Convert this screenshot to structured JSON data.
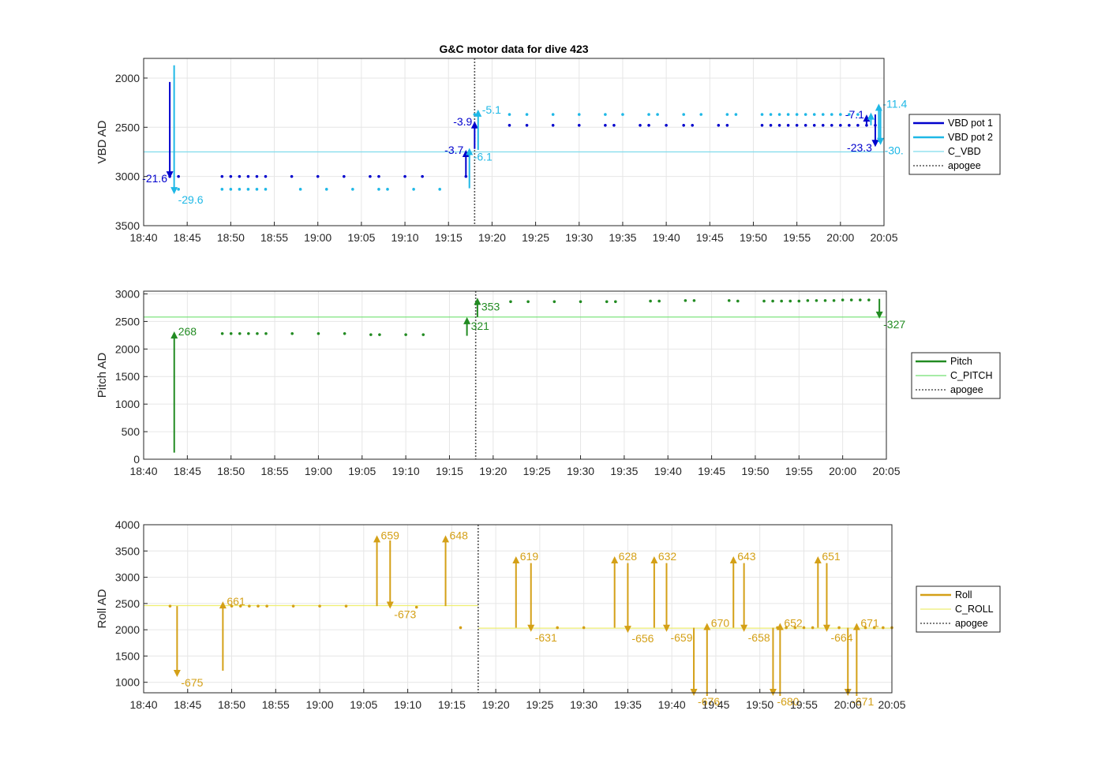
{
  "chart_data": {
    "title": "G&C motor data for dive 423",
    "type": "scatter",
    "xlim": [
      "18:40",
      "20:05"
    ],
    "xticks": [
      "18:40",
      "18:45",
      "18:50",
      "18:55",
      "19:00",
      "19:05",
      "19:10",
      "19:15",
      "19:20",
      "19:25",
      "19:30",
      "19:35",
      "19:40",
      "19:45",
      "19:50",
      "19:55",
      "20:00",
      "20:05"
    ],
    "apogee_time": "19:18",
    "panels": [
      {
        "id": "vbd",
        "ylabel": "VBD AD",
        "ylim": [
          1800,
          3500
        ],
        "reverse_y": true,
        "yticks": [
          2000,
          2500,
          3000,
          3500
        ],
        "grid": true,
        "legend_placement": "right",
        "series": [
          {
            "name": "VBD pot 1",
            "color": "#0000cd",
            "style": "dots",
            "x": [
              "18:43",
              "18:44",
              "18:49",
              "18:50",
              "18:51",
              "18:52",
              "18:53",
              "18:54",
              "18:57",
              "19:00",
              "19:03",
              "19:06",
              "19:07",
              "19:10",
              "19:12",
              "19:17",
              "19:22",
              "19:24",
              "19:27",
              "19:30",
              "19:33",
              "19:34",
              "19:37",
              "19:38",
              "19:40",
              "19:42",
              "19:43",
              "19:46",
              "19:47",
              "19:51",
              "19:52",
              "19:53",
              "19:54",
              "19:55",
              "19:56",
              "19:57",
              "19:58",
              "19:59",
              "20:00",
              "20:01",
              "20:02",
              "20:03",
              "20:04"
            ],
            "y": [
              3000,
              3000,
              3000,
              3000,
              3000,
              3000,
              3000,
              3000,
              3000,
              3000,
              3000,
              3000,
              3000,
              3000,
              3000,
              3000,
              2480,
              2480,
              2480,
              2480,
              2480,
              2480,
              2480,
              2480,
              2480,
              2480,
              2480,
              2480,
              2480,
              2480,
              2480,
              2480,
              2480,
              2480,
              2480,
              2480,
              2480,
              2480,
              2480,
              2480,
              2480,
              2480,
              2480
            ]
          },
          {
            "name": "VBD pot 2",
            "color": "#1fb8e6",
            "style": "dots",
            "x": [
              "18:44",
              "18:49",
              "18:50",
              "18:51",
              "18:52",
              "18:53",
              "18:54",
              "18:58",
              "19:01",
              "19:04",
              "19:07",
              "19:08",
              "19:11",
              "19:14",
              "19:18",
              "19:22",
              "19:24",
              "19:27",
              "19:30",
              "19:33",
              "19:35",
              "19:38",
              "19:39",
              "19:42",
              "19:44",
              "19:47",
              "19:48",
              "19:51",
              "19:52",
              "19:53",
              "19:54",
              "19:55",
              "19:56",
              "19:57",
              "19:58",
              "19:59",
              "20:00",
              "20:01",
              "20:02"
            ],
            "y": [
              3130,
              3130,
              3130,
              3130,
              3130,
              3130,
              3130,
              3130,
              3130,
              3130,
              3130,
              3130,
              3130,
              3130,
              2370,
              2370,
              2370,
              2370,
              2370,
              2370,
              2370,
              2370,
              2370,
              2370,
              2370,
              2370,
              2370,
              2370,
              2370,
              2370,
              2370,
              2370,
              2370,
              2370,
              2370,
              2370,
              2370,
              2370,
              2370
            ]
          },
          {
            "name": "C_VBD",
            "color": "#7fdcec",
            "style": "hline",
            "value": 2750
          },
          {
            "name": "apogee",
            "color": "#555555",
            "style": "vline-dotted"
          }
        ],
        "arrows": [
          {
            "x": "18:43",
            "from": 2040,
            "to": 3020,
            "color": "#0000cd",
            "label": "-21.6",
            "label_side": "left"
          },
          {
            "x": "18:43.5",
            "from": 1870,
            "to": 3180,
            "color": "#1fb8e6",
            "label": "-29.6",
            "label_side": "right-below"
          },
          {
            "x": "19:17",
            "from": 3010,
            "to": 2730,
            "color": "#0000cd",
            "label": "-3.7",
            "label_side": "left"
          },
          {
            "x": "19:17.4",
            "from": 3120,
            "to": 2710,
            "color": "#1fb8e6",
            "label": "-6.1",
            "label_side": "right-below"
          },
          {
            "x": "19:18.0",
            "from": 2720,
            "to": 2440,
            "color": "#0000cd",
            "label": "-3.9",
            "label_side": "left"
          },
          {
            "x": "19:18.4",
            "from": 2730,
            "to": 2320,
            "color": "#1fb8e6",
            "label": "-5.1",
            "label_side": "right"
          },
          {
            "x": "20:03",
            "from": 2490,
            "to": 2370,
            "color": "#0000cd",
            "label": "-7.1",
            "label_side": "left"
          },
          {
            "x": "20:03.5",
            "from": 2480,
            "to": 2350,
            "color": "#1fb8e6",
            "label": "",
            "label_side": "none"
          },
          {
            "x": "20:04",
            "from": 2370,
            "to": 2700,
            "color": "#0000cd",
            "label": "-23.3",
            "label_side": "left-below"
          },
          {
            "x": "20:04.4",
            "from": 2650,
            "to": 2260,
            "color": "#1fb8e6",
            "label": "-11.4",
            "label_side": "right"
          },
          {
            "x": "20:04.6",
            "from": 2300,
            "to": 2680,
            "color": "#1fb8e6",
            "label": "-30.",
            "label_side": "right-below"
          }
        ]
      },
      {
        "id": "pitch",
        "ylabel": "Pitch AD",
        "ylim": [
          0,
          3050
        ],
        "reverse_y": false,
        "yticks": [
          0,
          500,
          1000,
          1500,
          2000,
          2500,
          3000
        ],
        "grid": true,
        "legend_placement": "right",
        "series": [
          {
            "name": "Pitch",
            "color": "#228b22",
            "style": "dots",
            "x": [
              "18:49",
              "18:50",
              "18:51",
              "18:52",
              "18:53",
              "18:54",
              "18:57",
              "19:00",
              "19:03",
              "19:06",
              "19:07",
              "19:10",
              "19:12",
              "19:22",
              "19:24",
              "19:27",
              "19:30",
              "19:33",
              "19:34",
              "19:38",
              "19:39",
              "19:42",
              "19:43",
              "19:47",
              "19:48",
              "19:51",
              "19:52",
              "19:53",
              "19:54",
              "19:55",
              "19:56",
              "19:57",
              "19:58",
              "19:59",
              "20:00",
              "20:01",
              "20:02",
              "20:03"
            ],
            "y": [
              2280,
              2280,
              2280,
              2280,
              2280,
              2280,
              2280,
              2280,
              2280,
              2260,
              2260,
              2260,
              2260,
              2860,
              2860,
              2860,
              2860,
              2860,
              2860,
              2870,
              2870,
              2880,
              2880,
              2880,
              2870,
              2870,
              2870,
              2870,
              2870,
              2870,
              2880,
              2880,
              2880,
              2880,
              2890,
              2890,
              2890,
              2890
            ]
          },
          {
            "name": "C_PITCH",
            "color": "#70e070",
            "style": "hline",
            "value": 2580
          },
          {
            "name": "apogee",
            "color": "#555555",
            "style": "vline-dotted"
          }
        ],
        "arrows": [
          {
            "x": "18:43.5",
            "from": 120,
            "to": 2320,
            "color": "#228b22",
            "label": "268",
            "label_side": "right"
          },
          {
            "x": "19:17",
            "from": 2240,
            "to": 2580,
            "color": "#228b22",
            "label": "321",
            "label_side": "right-below"
          },
          {
            "x": "19:18.2",
            "from": 2580,
            "to": 2930,
            "color": "#228b22",
            "label": "353",
            "label_side": "right-below"
          },
          {
            "x": "20:04.2",
            "from": 2910,
            "to": 2550,
            "color": "#228b22",
            "label": "-327",
            "label_side": "right-below"
          }
        ]
      },
      {
        "id": "roll",
        "ylabel": "Roll AD",
        "ylim": [
          800,
          4000
        ],
        "reverse_y": false,
        "yticks": [
          1000,
          1500,
          2000,
          2500,
          3000,
          3500,
          4000
        ],
        "grid": true,
        "legend_placement": "right",
        "series": [
          {
            "name": "Roll",
            "color": "#d4a017",
            "style": "dots",
            "x": [
              "18:43",
              "18:50",
              "18:51",
              "18:52",
              "18:53",
              "18:54",
              "18:57",
              "19:00",
              "19:03",
              "19:11",
              "19:16",
              "19:27",
              "19:30",
              "19:52",
              "19:53",
              "19:54",
              "19:55",
              "19:56",
              "19:59",
              "20:02",
              "20:03",
              "20:04",
              "20:05"
            ],
            "y": [
              2450,
              2450,
              2450,
              2450,
              2450,
              2450,
              2450,
              2450,
              2450,
              2430,
              2040,
              2040,
              2040,
              2040,
              2040,
              2040,
              2040,
              2040,
              2040,
              2040,
              2040,
              2040,
              2040
            ]
          },
          {
            "name": "C_ROLL",
            "color": "#eeee70",
            "style": "hline-split",
            "before": 2460,
            "after": 2030
          },
          {
            "name": "apogee",
            "color": "#555555",
            "style": "vline-dotted"
          }
        ],
        "arrows": [
          {
            "x": "18:43.8",
            "from": 2450,
            "to": 1100,
            "color": "#d4a017",
            "label": "-675",
            "label_side": "right-below"
          },
          {
            "x": "18:49",
            "from": 1220,
            "to": 2540,
            "color": "#d4a017",
            "label": "661",
            "label_side": "right"
          },
          {
            "x": "19:06.5",
            "from": 2450,
            "to": 3800,
            "color": "#d4a017",
            "label": "659",
            "label_side": "right"
          },
          {
            "x": "19:08",
            "from": 3700,
            "to": 2400,
            "color": "#d4a017",
            "label": "-673",
            "label_side": "right-below"
          },
          {
            "x": "19:14.3",
            "from": 2450,
            "to": 3800,
            "color": "#d4a017",
            "label": "648",
            "label_side": "right"
          },
          {
            "x": "19:22.3",
            "from": 2040,
            "to": 3400,
            "color": "#d4a017",
            "label": "619",
            "label_side": "right"
          },
          {
            "x": "19:24",
            "from": 3270,
            "to": 1960,
            "color": "#d4a017",
            "label": "-631",
            "label_side": "right-below"
          },
          {
            "x": "19:33.5",
            "from": 2040,
            "to": 3400,
            "color": "#d4a017",
            "label": "628",
            "label_side": "right"
          },
          {
            "x": "19:35",
            "from": 3270,
            "to": 1940,
            "color": "#d4a017",
            "label": "-656",
            "label_side": "right-below"
          },
          {
            "x": "19:38",
            "from": 2040,
            "to": 3400,
            "color": "#d4a017",
            "label": "632",
            "label_side": "right"
          },
          {
            "x": "19:39.4",
            "from": 3270,
            "to": 1960,
            "color": "#d4a017",
            "label": "-659",
            "label_side": "right-below"
          },
          {
            "x": "19:42.5",
            "from": 2040,
            "to": 740,
            "color": "#d4a017",
            "label": "-676",
            "label_side": "right-below"
          },
          {
            "x": "19:44",
            "from": 740,
            "to": 2130,
            "color": "#d4a017",
            "label": "670",
            "label_side": "right"
          },
          {
            "x": "19:47",
            "from": 2040,
            "to": 3400,
            "color": "#d4a017",
            "label": "643",
            "label_side": "right"
          },
          {
            "x": "19:48.2",
            "from": 3270,
            "to": 1960,
            "color": "#d4a017",
            "label": "-658",
            "label_side": "right-below"
          },
          {
            "x": "19:51.5",
            "from": 2040,
            "to": 740,
            "color": "#d4a017",
            "label": "-680",
            "label_side": "right-below"
          },
          {
            "x": "19:52.3",
            "from": 740,
            "to": 2130,
            "color": "#d4a017",
            "label": "652",
            "label_side": "right"
          },
          {
            "x": "19:56.6",
            "from": 2040,
            "to": 3400,
            "color": "#d4a017",
            "label": "651",
            "label_side": "right"
          },
          {
            "x": "19:57.6",
            "from": 3270,
            "to": 1960,
            "color": "#d4a017",
            "label": "-664",
            "label_side": "right-below"
          },
          {
            "x": "20:00",
            "from": 2040,
            "to": 740,
            "color": "#d4a017",
            "label": "-671",
            "label_side": "right-below"
          },
          {
            "x": "20:01",
            "from": 740,
            "to": 2130,
            "color": "#d4a017",
            "label": "671",
            "label_side": "right"
          }
        ]
      }
    ]
  }
}
